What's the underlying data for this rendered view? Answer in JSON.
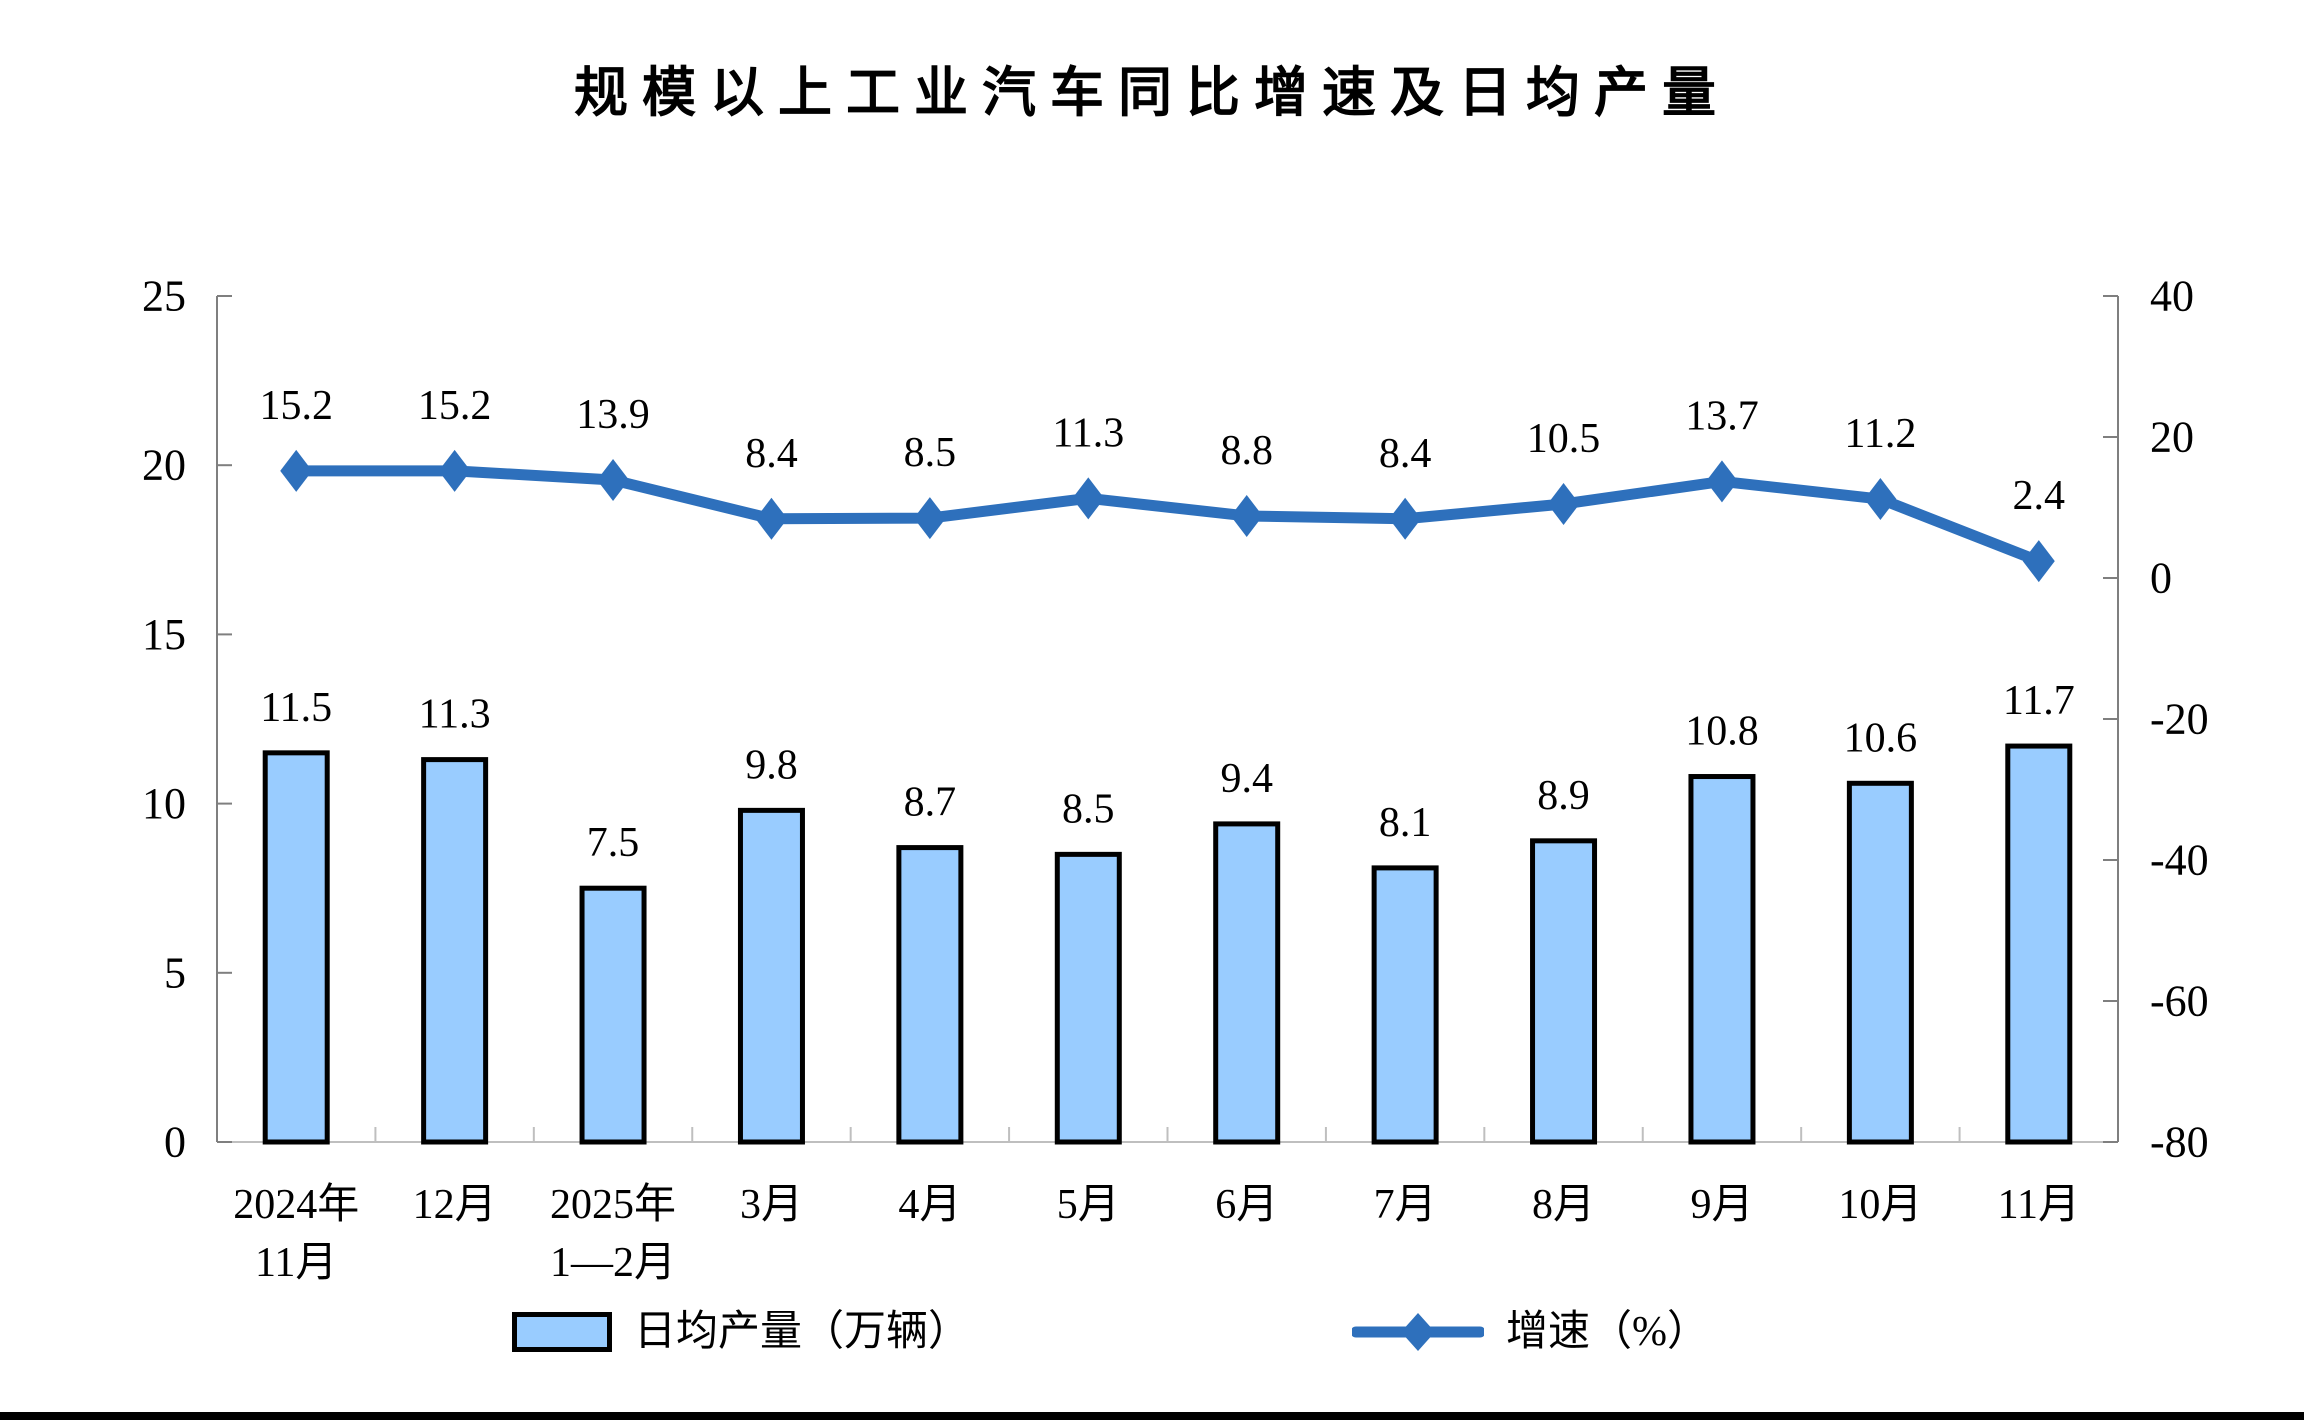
{
  "title": "规模以上工业汽车同比增速及日均产量",
  "chart_data": {
    "type": "combo_bar_line",
    "title": "规模以上工业汽车同比增速及日均产量",
    "categories": [
      [
        "2024年",
        "11月"
      ],
      [
        "12月"
      ],
      [
        "2025年",
        "1—2月"
      ],
      [
        "3月"
      ],
      [
        "4月"
      ],
      [
        "5月"
      ],
      [
        "6月"
      ],
      [
        "7月"
      ],
      [
        "8月"
      ],
      [
        "9月"
      ],
      [
        "10月"
      ],
      [
        "11月"
      ]
    ],
    "series": [
      {
        "name": "日均产量（万辆）",
        "type": "bar",
        "axis": "left",
        "values": [
          11.5,
          11.3,
          7.5,
          9.8,
          8.7,
          8.5,
          9.4,
          8.1,
          8.9,
          10.8,
          10.6,
          11.7
        ],
        "fill_color": "#99CCFF",
        "border_color": "#000000"
      },
      {
        "name": "增速（%）",
        "type": "line",
        "axis": "right",
        "values": [
          15.2,
          15.2,
          13.9,
          8.4,
          8.5,
          11.3,
          8.8,
          8.4,
          10.5,
          13.7,
          11.2,
          2.4
        ],
        "line_color": "#2E70BC",
        "marker": "diamond"
      }
    ],
    "left_axis": {
      "min": 0,
      "max": 25,
      "step": 5,
      "tick_labels": [
        "0",
        "5",
        "10",
        "15",
        "20",
        "25"
      ]
    },
    "right_axis": {
      "min": -80,
      "max": 40,
      "step": 20,
      "tick_labels": [
        "-80",
        "-60",
        "-40",
        "-20",
        "0",
        "20",
        "40"
      ]
    },
    "legend": {
      "position": "bottom",
      "items": [
        {
          "label": "日均产量（万辆）",
          "swatch": "bar"
        },
        {
          "label": "增速（%）",
          "swatch": "line-diamond"
        }
      ]
    },
    "grid": "off",
    "data_labels": "on",
    "axis_color": "#7F7F7F",
    "x_axis_color": "#BFBFBF",
    "label_color": "#000000"
  }
}
